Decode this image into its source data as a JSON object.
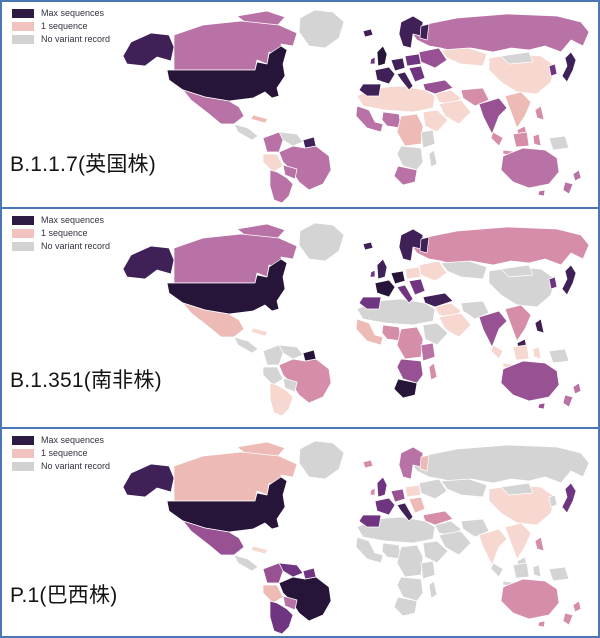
{
  "frame": {
    "border_color": "#4c77b6",
    "background": "#ffffff"
  },
  "chart_data": {
    "type": "choropleth",
    "title": "",
    "legend": [
      {
        "label": "Max sequences",
        "color": "#2e1b44"
      },
      {
        "label": "1 sequence",
        "color": "#f0c3bf"
      },
      {
        "label": "No variant record",
        "color": "#d2d2d2"
      }
    ],
    "scale": {
      "max": "#261539",
      "vhigh": "#3f2158",
      "high": "#6f3580",
      "mhigh": "#985293",
      "med": "#b972a5",
      "mlow": "#d68da9",
      "low": "#edbab5",
      "vlow": "#f6d8d0",
      "none": "#d4d4d4"
    },
    "panels": [
      {
        "variant": "B.1.1.7",
        "label": "B.1.1.7(英国株)",
        "regions": {
          "greenland": "none",
          "arctic_islands": "med",
          "alaska": "vhigh",
          "canada": "med",
          "usa": "max",
          "mexico": "med",
          "centam": "none",
          "cuba": "low",
          "venezuela": "none",
          "colombia": "med",
          "peru": "vlow",
          "brazil": "med",
          "guianas": "vhigh",
          "bolivia": "med",
          "argentina": "med",
          "north_africa": "vlow",
          "west_africa": "med",
          "nigeria": "med",
          "central_africa": "low",
          "horn": "vlow",
          "east_africa": "none",
          "southern_africa": "none",
          "south_africa": "med",
          "madagascar": "none",
          "iceland": "vhigh",
          "uk": "max",
          "ireland": "high",
          "scandinavia": "vhigh",
          "finland": "vhigh",
          "germany": "vhigh",
          "france": "vhigh",
          "iberia": "vhigh",
          "italy": "vhigh",
          "central_eu": "high",
          "balkans": "high",
          "east_europe": "mhigh",
          "turkey": "mhigh",
          "russia": "med",
          "kazakh": "vlow",
          "mideast": "vlow",
          "saudi": "vlow",
          "iran": "mlow",
          "india": "mhigh",
          "china": "vlow",
          "mongolia": "none",
          "se_asia": "low",
          "malaysia": "mlow",
          "korea": "high",
          "japan": "vhigh",
          "philippines": "mlow",
          "indonesia": "mlow",
          "new_guinea": "none",
          "australia": "med",
          "tasmania": "med",
          "nz": "med"
        }
      },
      {
        "variant": "B.1.351",
        "label": "B.1.351(南非株)",
        "regions": {
          "greenland": "none",
          "arctic_islands": "med",
          "alaska": "vhigh",
          "canada": "med",
          "usa": "max",
          "mexico": "low",
          "centam": "none",
          "cuba": "vlow",
          "venezuela": "none",
          "colombia": "none",
          "peru": "none",
          "brazil": "mlow",
          "guianas": "max",
          "bolivia": "none",
          "argentina": "vlow",
          "north_africa": "none",
          "west_africa": "low",
          "nigeria": "mlow",
          "central_africa": "mlow",
          "horn": "none",
          "east_africa": "med",
          "southern_africa": "mhigh",
          "south_africa": "max",
          "madagascar": "mlow",
          "iceland": "vhigh",
          "uk": "vhigh",
          "ireland": "high",
          "scandinavia": "vhigh",
          "finland": "vhigh",
          "germany": "max",
          "france": "max",
          "iberia": "high",
          "italy": "high",
          "central_eu": "vlow",
          "balkans": "high",
          "east_europe": "vlow",
          "turkey": "vhigh",
          "russia": "mlow",
          "kazakh": "none",
          "mideast": "vlow",
          "saudi": "vlow",
          "iran": "none",
          "india": "mhigh",
          "china": "none",
          "mongolia": "none",
          "se_asia": "mlow",
          "malaysia": "vhigh",
          "korea": "high",
          "japan": "vhigh",
          "philippines": "vhigh",
          "indonesia": "vlow",
          "new_guinea": "none",
          "australia": "mhigh",
          "tasmania": "mhigh",
          "nz": "med"
        }
      },
      {
        "variant": "P.1",
        "label": "P.1(巴西株)",
        "regions": {
          "greenland": "none",
          "arctic_islands": "low",
          "alaska": "vhigh",
          "canada": "low",
          "usa": "max",
          "mexico": "mhigh",
          "centam": "none",
          "cuba": "vlow",
          "venezuela": "high",
          "colombia": "mhigh",
          "peru": "low",
          "brazil": "max",
          "guianas": "high",
          "bolivia": "med",
          "argentina": "high",
          "north_africa": "none",
          "west_africa": "none",
          "nigeria": "none",
          "central_africa": "none",
          "horn": "none",
          "east_africa": "none",
          "southern_africa": "none",
          "south_africa": "none",
          "madagascar": "none",
          "iceland": "mlow",
          "uk": "high",
          "ireland": "mlow",
          "scandinavia": "med",
          "finland": "low",
          "germany": "mhigh",
          "france": "high",
          "iberia": "high",
          "italy": "vhigh",
          "central_eu": "vlow",
          "balkans": "low",
          "east_europe": "none",
          "turkey": "mlow",
          "russia": "none",
          "kazakh": "none",
          "mideast": "none",
          "saudi": "none",
          "iran": "none",
          "india": "vlow",
          "china": "vlow",
          "mongolia": "none",
          "se_asia": "vlow",
          "malaysia": "none",
          "korea": "none",
          "japan": "high",
          "philippines": "mlow",
          "indonesia": "none",
          "new_guinea": "none",
          "australia": "mlow",
          "tasmania": "mlow",
          "nz": "mlow"
        }
      }
    ]
  }
}
